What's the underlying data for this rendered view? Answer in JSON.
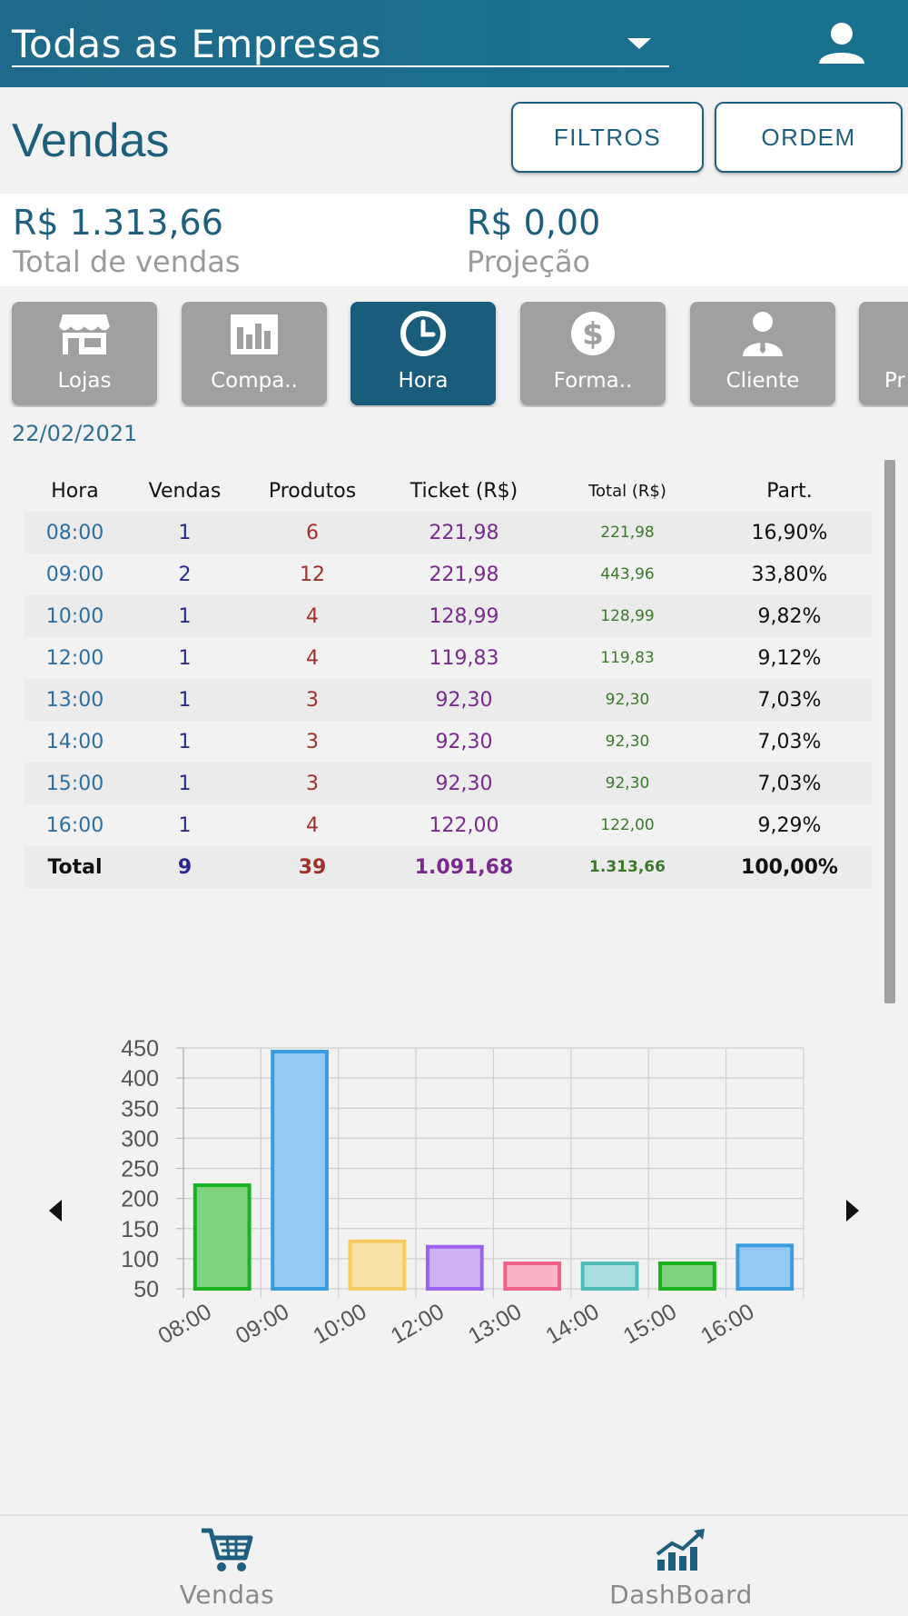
{
  "header": {
    "company_select": "Todas as Empresas"
  },
  "title": "Vendas",
  "buttons": {
    "filtros": "FILTROS",
    "ordem": "ORDEM"
  },
  "summary": {
    "total_value": "R$ 1.313,66",
    "total_label": "Total de vendas",
    "projection_value": "R$ 0,00",
    "projection_label": "Projeção"
  },
  "tabs": [
    {
      "label": "Lojas",
      "icon": "store-icon"
    },
    {
      "label": "Compa..",
      "icon": "bar-chart-icon"
    },
    {
      "label": "Hora",
      "icon": "clock-icon",
      "active": true
    },
    {
      "label": "Forma..",
      "icon": "dollar-icon"
    },
    {
      "label": "Cliente",
      "icon": "person-icon"
    },
    {
      "label": "Pr",
      "icon": "product-icon"
    }
  ],
  "date": "22/02/2021",
  "table": {
    "headers": [
      "Hora",
      "Vendas",
      "Produtos",
      "Ticket (R$)",
      "Total (R$)",
      "Part."
    ],
    "rows": [
      [
        "08:00",
        "1",
        "6",
        "221,98",
        "221,98",
        "16,90%"
      ],
      [
        "09:00",
        "2",
        "12",
        "221,98",
        "443,96",
        "33,80%"
      ],
      [
        "10:00",
        "1",
        "4",
        "128,99",
        "128,99",
        "9,82%"
      ],
      [
        "12:00",
        "1",
        "4",
        "119,83",
        "119,83",
        "9,12%"
      ],
      [
        "13:00",
        "1",
        "3",
        "92,30",
        "92,30",
        "7,03%"
      ],
      [
        "14:00",
        "1",
        "3",
        "92,30",
        "92,30",
        "7,03%"
      ],
      [
        "15:00",
        "1",
        "3",
        "92,30",
        "92,30",
        "7,03%"
      ],
      [
        "16:00",
        "1",
        "4",
        "122,00",
        "122,00",
        "9,29%"
      ]
    ],
    "footer": [
      "Total",
      "9",
      "39",
      "1.091,68",
      "1.313,66",
      "100,00%"
    ]
  },
  "chart_data": {
    "type": "bar",
    "categories": [
      "08:00",
      "09:00",
      "10:00",
      "12:00",
      "13:00",
      "14:00",
      "15:00",
      "16:00"
    ],
    "values": [
      221.98,
      443.96,
      128.99,
      119.83,
      92.3,
      92.3,
      92.3,
      122.0
    ],
    "ylim": [
      50,
      450
    ],
    "yticks": [
      50,
      100,
      150,
      200,
      250,
      300,
      350,
      400,
      450
    ],
    "grid": true,
    "title": "",
    "xlabel": "",
    "ylabel": "",
    "colors": [
      {
        "fill": "#7ed37e",
        "stroke": "#19b21e"
      },
      {
        "fill": "#93c9f0",
        "stroke": "#3a9ce0"
      },
      {
        "fill": "#f8e1a6",
        "stroke": "#f5cc62"
      },
      {
        "fill": "#cdb2f3",
        "stroke": "#9b62f0"
      },
      {
        "fill": "#f7b6c6",
        "stroke": "#f0628a"
      },
      {
        "fill": "#a9dfdd",
        "stroke": "#4fbdbb"
      },
      {
        "fill": "#7ed37e",
        "stroke": "#19b21e"
      },
      {
        "fill": "#93c9f0",
        "stroke": "#3a9ce0"
      }
    ]
  },
  "bottom_nav": [
    {
      "label": "Vendas",
      "icon": "cart-icon"
    },
    {
      "label": "DashBoard",
      "icon": "growth-chart-icon"
    }
  ],
  "colors": {
    "primary": "#1e5f7d",
    "header": "#17728f",
    "tab_inactive": "#9ea0a2",
    "tab_active": "#1a5c7c"
  }
}
